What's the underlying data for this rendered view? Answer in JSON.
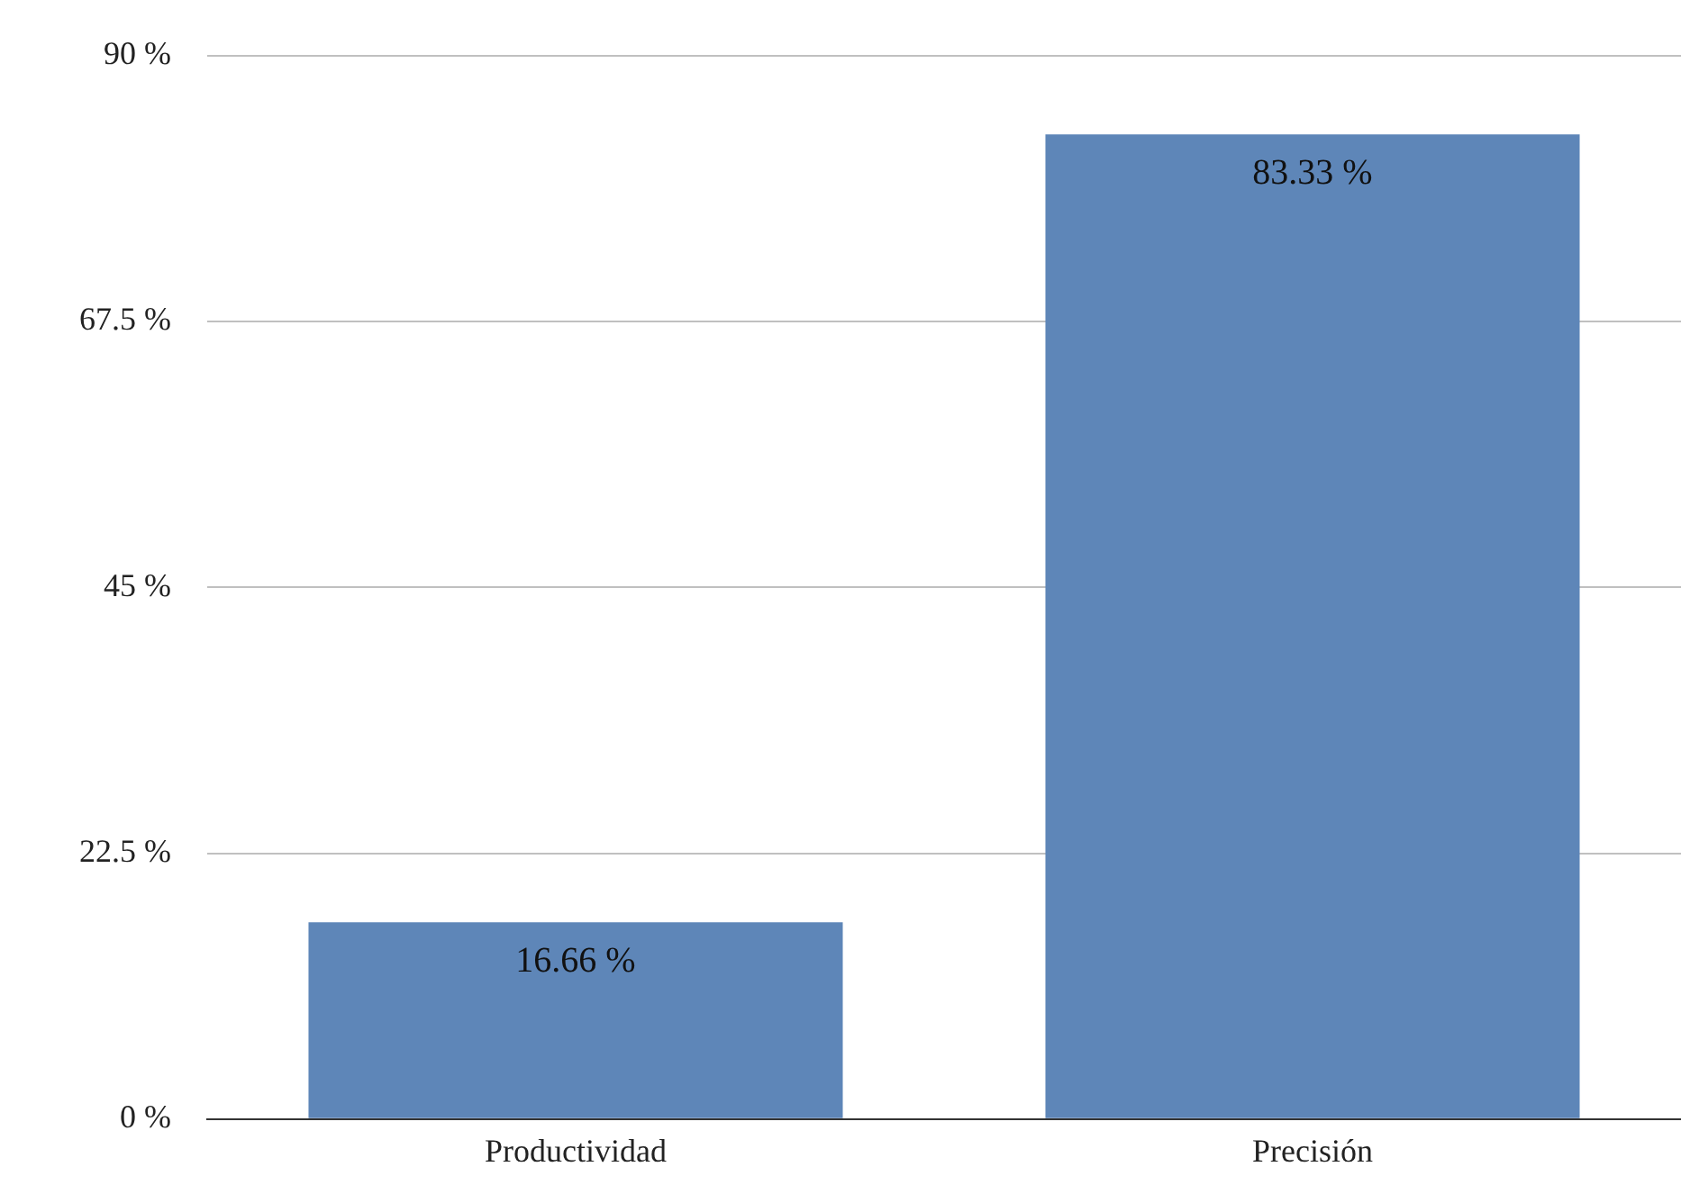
{
  "chart_data": {
    "type": "bar",
    "categories": [
      "Productividad",
      "Precisión"
    ],
    "values": [
      16.66,
      83.33
    ],
    "color": "#5e86b8",
    "value_labels": [
      "16.66 %",
      "83.33 %"
    ],
    "ylim": [
      0,
      90
    ],
    "yticks": [
      {
        "value": 0,
        "label": "0 %"
      },
      {
        "value": 22.5,
        "label": "22.5 %"
      },
      {
        "value": 45,
        "label": "45 %"
      },
      {
        "value": 67.5,
        "label": "67.5 %"
      },
      {
        "value": 90,
        "label": "90 %"
      }
    ],
    "grid": "y",
    "legend": false
  }
}
